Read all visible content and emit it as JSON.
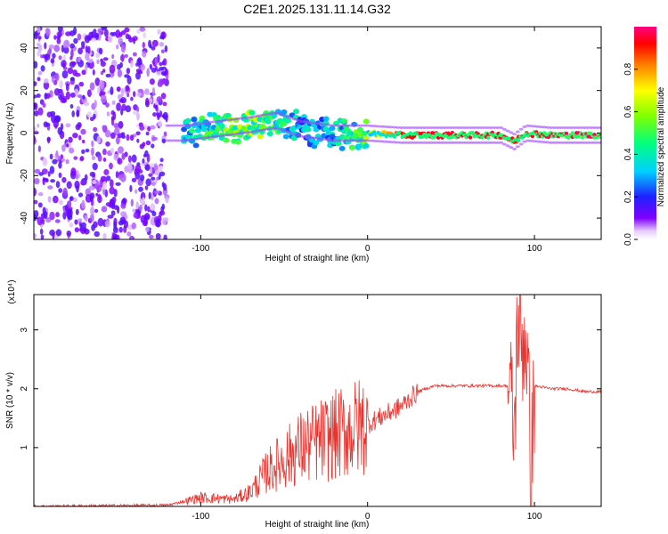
{
  "chart_data": [
    {
      "type": "heatmap",
      "title": "C2E1.2025.131.11.14.G32",
      "xlabel": "Height of straight line (km)",
      "ylabel": "Frequency (Hz)",
      "xlim": [
        -200,
        140
      ],
      "ylim": [
        -50,
        50
      ],
      "x_ticks": [
        -100,
        0,
        100
      ],
      "y_ticks": [
        -40,
        -20,
        0,
        20,
        40
      ],
      "colorbar": {
        "label": "Normalized spectral amplitude",
        "range": [
          0,
          1
        ],
        "ticks": [
          "0.0",
          "0.2",
          "0.4",
          "0.6",
          "0.8"
        ],
        "tick_values": [
          0.0,
          0.2,
          0.4,
          0.6,
          0.8
        ]
      },
      "ridge": {
        "description": "dominant spectral energy near 0 Hz",
        "heights_km": [
          -110,
          -90,
          -70,
          -55,
          -40,
          -20,
          0,
          20,
          40,
          60,
          80,
          88,
          95,
          110,
          140
        ],
        "freq_center_hz": [
          0,
          2,
          4,
          6,
          2,
          0,
          0,
          -1,
          -1,
          -1,
          -1,
          -4,
          0,
          -1,
          -1
        ],
        "peak_amplitude": [
          0.4,
          0.55,
          0.65,
          0.55,
          0.35,
          0.4,
          0.6,
          0.9,
          0.95,
          0.95,
          0.95,
          0.9,
          0.9,
          0.98,
          0.98
        ]
      },
      "noise_region_km": [
        -200,
        -120
      ]
    },
    {
      "type": "line",
      "title": "",
      "xlabel": "Height of straight line (km)",
      "ylabel": "SNR (10 * v/v)",
      "y_multiplier_label": "(x10⁴)",
      "xlim": [
        -200,
        140
      ],
      "ylim": [
        0,
        3.6
      ],
      "x_ticks": [
        -100,
        0,
        100
      ],
      "y_ticks": [
        1,
        2,
        3
      ],
      "series": [
        {
          "name": "SNR",
          "color": "#e8332e",
          "x": [
            -200,
            -120,
            -100,
            -80,
            -70,
            -60,
            -50,
            -40,
            -30,
            -20,
            -10,
            0,
            10,
            20,
            30,
            40,
            50,
            60,
            70,
            80,
            85,
            88,
            90,
            92,
            95,
            98,
            100,
            110,
            120,
            130,
            140
          ],
          "y": [
            0.0,
            0.02,
            0.15,
            0.12,
            0.25,
            0.6,
            0.8,
            1.0,
            1.1,
            1.2,
            1.3,
            1.4,
            1.55,
            1.7,
            1.95,
            2.05,
            2.05,
            2.05,
            2.05,
            2.05,
            2.05,
            1.2,
            3.3,
            2.7,
            3.0,
            0.5,
            2.05,
            2.0,
            2.0,
            1.95,
            1.95
          ]
        }
      ]
    }
  ]
}
